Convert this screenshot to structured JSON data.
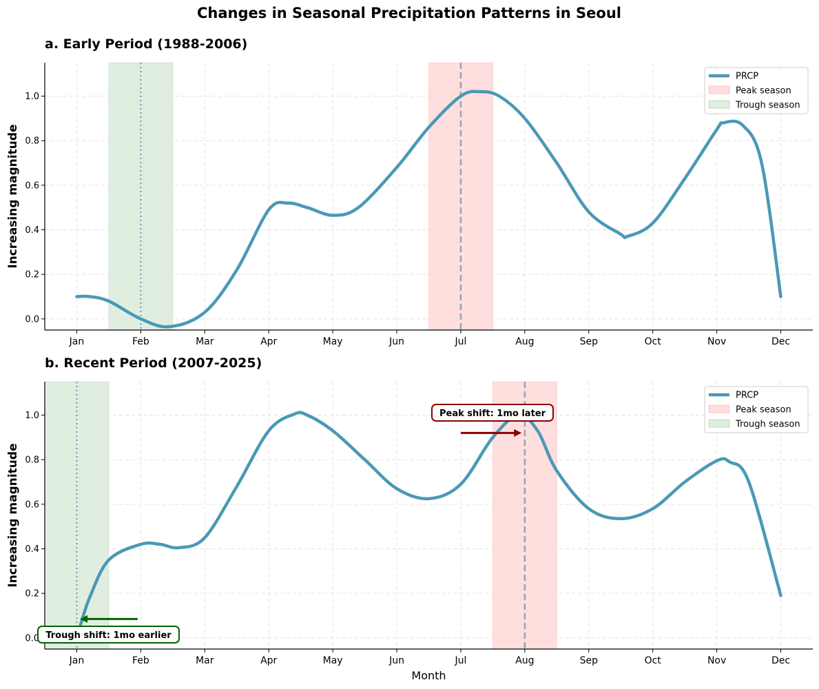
{
  "title": "Changes in Seasonal Precipitation Patterns in Seoul",
  "chart_data": [
    {
      "type": "line",
      "title": "a. Early Period (1988-2006)",
      "xlabel": "",
      "ylabel": "Increasing magnitude",
      "categories": [
        "Jan",
        "Feb",
        "Mar",
        "Apr",
        "May",
        "Jun",
        "Jul",
        "Aug",
        "Sep",
        "Oct",
        "Nov",
        "Dec"
      ],
      "xlim": [
        0.5,
        12.5
      ],
      "ylim": [
        -0.05,
        1.15
      ],
      "yticks": [
        0.0,
        0.2,
        0.4,
        0.6,
        0.8,
        1.0
      ],
      "grid": true,
      "legend_position": "top-right",
      "legend": [
        "PRCP",
        "Peak season",
        "Trough season"
      ],
      "series": [
        {
          "name": "PRCP",
          "color": "#4a98b6",
          "points": [
            [
              1,
              0.1
            ],
            [
              1.2,
              0.1
            ],
            [
              1.5,
              0.08
            ],
            [
              2,
              0.0
            ],
            [
              2.45,
              -0.035
            ],
            [
              3,
              0.03
            ],
            [
              3.5,
              0.22
            ],
            [
              4,
              0.49
            ],
            [
              4.3,
              0.52
            ],
            [
              4.6,
              0.5
            ],
            [
              5,
              0.465
            ],
            [
              5.4,
              0.5
            ],
            [
              6,
              0.68
            ],
            [
              6.5,
              0.86
            ],
            [
              7,
              1.0
            ],
            [
              7.3,
              1.02
            ],
            [
              7.6,
              1.0
            ],
            [
              8,
              0.9
            ],
            [
              8.5,
              0.7
            ],
            [
              9,
              0.48
            ],
            [
              9.5,
              0.38
            ],
            [
              9.6,
              0.37
            ],
            [
              10,
              0.43
            ],
            [
              10.5,
              0.63
            ],
            [
              11,
              0.85
            ],
            [
              11.1,
              0.88
            ],
            [
              11.4,
              0.87
            ],
            [
              11.7,
              0.7
            ],
            [
              12,
              0.1
            ]
          ]
        }
      ],
      "peak_month": 7,
      "peak_season": [
        6.5,
        7.5
      ],
      "trough_month": 2,
      "trough_season": [
        1.5,
        2.5
      ]
    },
    {
      "type": "line",
      "title": "b. Recent Period (2007-2025)",
      "xlabel": "Month",
      "ylabel": "Increasing magnitude",
      "categories": [
        "Jan",
        "Feb",
        "Mar",
        "Apr",
        "May",
        "Jun",
        "Jul",
        "Aug",
        "Sep",
        "Oct",
        "Nov",
        "Dec"
      ],
      "xlim": [
        0.5,
        12.5
      ],
      "ylim": [
        -0.05,
        1.15
      ],
      "yticks": [
        0.0,
        0.2,
        0.4,
        0.6,
        0.8,
        1.0
      ],
      "grid": true,
      "legend_position": "top-right",
      "legend": [
        "PRCP",
        "Peak season",
        "Trough season"
      ],
      "series": [
        {
          "name": "PRCP",
          "color": "#4a98b6",
          "points": [
            [
              1.05,
              0.05
            ],
            [
              1.2,
              0.18
            ],
            [
              1.5,
              0.35
            ],
            [
              2,
              0.42
            ],
            [
              2.3,
              0.42
            ],
            [
              2.6,
              0.405
            ],
            [
              3,
              0.45
            ],
            [
              3.5,
              0.68
            ],
            [
              4,
              0.93
            ],
            [
              4.4,
              1.005
            ],
            [
              4.6,
              1.0
            ],
            [
              5,
              0.93
            ],
            [
              5.5,
              0.8
            ],
            [
              6,
              0.67
            ],
            [
              6.5,
              0.625
            ],
            [
              7,
              0.69
            ],
            [
              7.5,
              0.9
            ],
            [
              7.9,
              1.0
            ],
            [
              8.2,
              0.93
            ],
            [
              8.5,
              0.75
            ],
            [
              9,
              0.58
            ],
            [
              9.5,
              0.535
            ],
            [
              10,
              0.58
            ],
            [
              10.5,
              0.7
            ],
            [
              11,
              0.795
            ],
            [
              11.2,
              0.79
            ],
            [
              11.5,
              0.7
            ],
            [
              12,
              0.19
            ]
          ]
        }
      ],
      "peak_month": 8,
      "peak_season": [
        7.5,
        8.5
      ],
      "trough_month": 1,
      "trough_season": [
        0.5,
        1.5
      ],
      "annotations": [
        {
          "text": "Peak shift: 1mo later",
          "from": [
            7.0,
            0.92
          ],
          "to": [
            7.95,
            0.92
          ],
          "color": "#8b0000"
        },
        {
          "text": "Trough shift: 1mo earlier",
          "from": [
            1.95,
            0.085
          ],
          "to": [
            1.05,
            0.085
          ],
          "color": "#006400"
        }
      ]
    }
  ]
}
